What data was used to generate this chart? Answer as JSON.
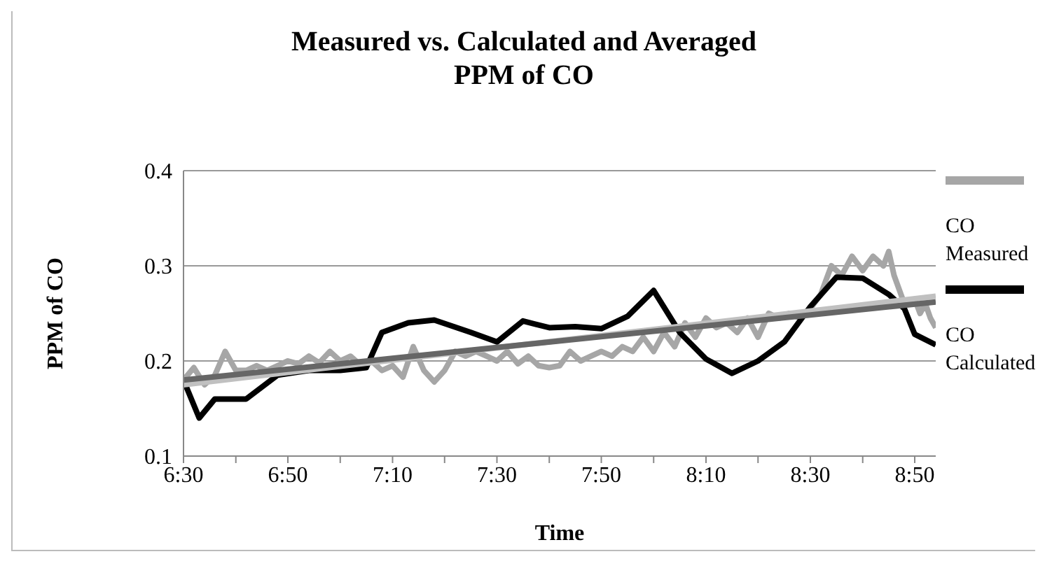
{
  "chart_data": {
    "type": "line",
    "title": "Measured vs. Calculated and Averaged PPM of CO",
    "xlabel": "Time",
    "ylabel": "PPM of CO",
    "xlim": [
      6.5,
      8.9
    ],
    "xticks": [
      {
        "value": 6.5,
        "label": "6:30"
      },
      {
        "value": 6.667,
        "label": null
      },
      {
        "value": 6.833,
        "label": "6:50"
      },
      {
        "value": 7.0,
        "label": null
      },
      {
        "value": 7.167,
        "label": "7:10"
      },
      {
        "value": 7.333,
        "label": null
      },
      {
        "value": 7.5,
        "label": "7:30"
      },
      {
        "value": 7.667,
        "label": null
      },
      {
        "value": 7.833,
        "label": "7:50"
      },
      {
        "value": 8.0,
        "label": null
      },
      {
        "value": 8.167,
        "label": "8:10"
      },
      {
        "value": 8.333,
        "label": null
      },
      {
        "value": 8.5,
        "label": "8:30"
      },
      {
        "value": 8.667,
        "label": null
      },
      {
        "value": 8.833,
        "label": "8:50"
      }
    ],
    "ylim": [
      0.1,
      0.4
    ],
    "yticks": [
      0.1,
      0.2,
      0.3,
      0.4
    ],
    "grid": "y",
    "legend": "right",
    "marker": "none",
    "line_style": "solid",
    "series": [
      {
        "name": "CO Measured",
        "color": "#a6a6a6",
        "x": [
          6.5,
          6.533,
          6.567,
          6.6,
          6.633,
          6.667,
          6.7,
          6.733,
          6.767,
          6.8,
          6.833,
          6.867,
          6.9,
          6.933,
          6.967,
          7.0,
          7.033,
          7.067,
          7.1,
          7.133,
          7.167,
          7.2,
          7.233,
          7.267,
          7.3,
          7.333,
          7.367,
          7.4,
          7.433,
          7.467,
          7.5,
          7.533,
          7.567,
          7.6,
          7.633,
          7.667,
          7.7,
          7.733,
          7.767,
          7.8,
          7.833,
          7.867,
          7.9,
          7.933,
          7.967,
          8.0,
          8.033,
          8.067,
          8.1,
          8.133,
          8.167,
          8.2,
          8.233,
          8.267,
          8.3,
          8.333,
          8.367,
          8.4,
          8.433,
          8.467,
          8.5,
          8.533,
          8.567,
          8.6,
          8.633,
          8.667,
          8.7,
          8.733,
          8.75,
          8.767,
          8.8,
          8.833,
          8.85,
          8.867,
          8.883,
          8.9
        ],
        "values": [
          0.18,
          0.193,
          0.175,
          0.185,
          0.21,
          0.19,
          0.19,
          0.195,
          0.19,
          0.195,
          0.2,
          0.197,
          0.205,
          0.198,
          0.21,
          0.2,
          0.205,
          0.195,
          0.2,
          0.19,
          0.195,
          0.183,
          0.215,
          0.19,
          0.178,
          0.19,
          0.21,
          0.205,
          0.21,
          0.205,
          0.2,
          0.21,
          0.197,
          0.205,
          0.195,
          0.193,
          0.195,
          0.21,
          0.2,
          0.205,
          0.21,
          0.205,
          0.215,
          0.21,
          0.225,
          0.21,
          0.23,
          0.215,
          0.24,
          0.225,
          0.245,
          0.235,
          0.24,
          0.23,
          0.245,
          0.225,
          0.25,
          0.245,
          0.25,
          0.245,
          0.255,
          0.27,
          0.3,
          0.29,
          0.31,
          0.295,
          0.31,
          0.3,
          0.315,
          0.29,
          0.26,
          0.265,
          0.25,
          0.26,
          0.245,
          0.235
        ]
      },
      {
        "name": "CO Calculated",
        "color": "#000000",
        "x": [
          6.5,
          6.55,
          6.6,
          6.7,
          6.8,
          6.9,
          7.0,
          7.083,
          7.133,
          7.217,
          7.3,
          7.417,
          7.5,
          7.583,
          7.667,
          7.75,
          7.833,
          7.917,
          8.0,
          8.083,
          8.167,
          8.25,
          8.333,
          8.417,
          8.5,
          8.583,
          8.667,
          8.75,
          8.8,
          8.833,
          8.9
        ],
        "values": [
          0.18,
          0.14,
          0.16,
          0.16,
          0.185,
          0.19,
          0.19,
          0.193,
          0.23,
          0.24,
          0.243,
          0.23,
          0.22,
          0.242,
          0.235,
          0.236,
          0.234,
          0.247,
          0.274,
          0.23,
          0.202,
          0.187,
          0.2,
          0.22,
          0.257,
          0.288,
          0.287,
          0.27,
          0.255,
          0.228,
          0.217
        ]
      },
      {
        "color": "#c0c0c0",
        "x": [
          6.5,
          8.9
        ],
        "values": [
          0.175,
          0.268
        ]
      },
      {
        "color": "#666666",
        "x": [
          6.5,
          8.9
        ],
        "values": [
          0.18,
          0.262
        ]
      }
    ]
  }
}
